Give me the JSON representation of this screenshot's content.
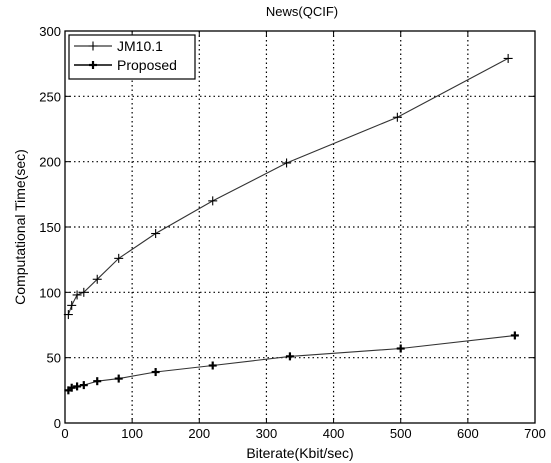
{
  "chart_data": {
    "type": "line",
    "title": "News(QCIF)",
    "xlabel": "Biterate(Kbit/sec)",
    "ylabel": "Computational Time(sec)",
    "xlim": [
      0,
      700
    ],
    "ylim": [
      0,
      300
    ],
    "xticks": [
      0,
      100,
      200,
      300,
      400,
      500,
      600,
      700
    ],
    "yticks": [
      0,
      50,
      100,
      150,
      200,
      250,
      300
    ],
    "grid": true,
    "legend_position": "top-left",
    "series": [
      {
        "name": "JM10.1",
        "marker": "thin-plus",
        "x": [
          5,
          10,
          18,
          28,
          48,
          80,
          135,
          220,
          330,
          495,
          660
        ],
        "y": [
          83,
          90,
          98,
          100,
          110,
          126,
          145,
          170,
          199,
          234,
          279
        ]
      },
      {
        "name": "Proposed",
        "marker": "bold-plus",
        "x": [
          5,
          10,
          18,
          28,
          48,
          80,
          135,
          220,
          335,
          500,
          670
        ],
        "y": [
          25,
          27,
          28,
          29,
          32,
          34,
          39,
          44,
          51,
          57,
          67
        ]
      }
    ]
  }
}
